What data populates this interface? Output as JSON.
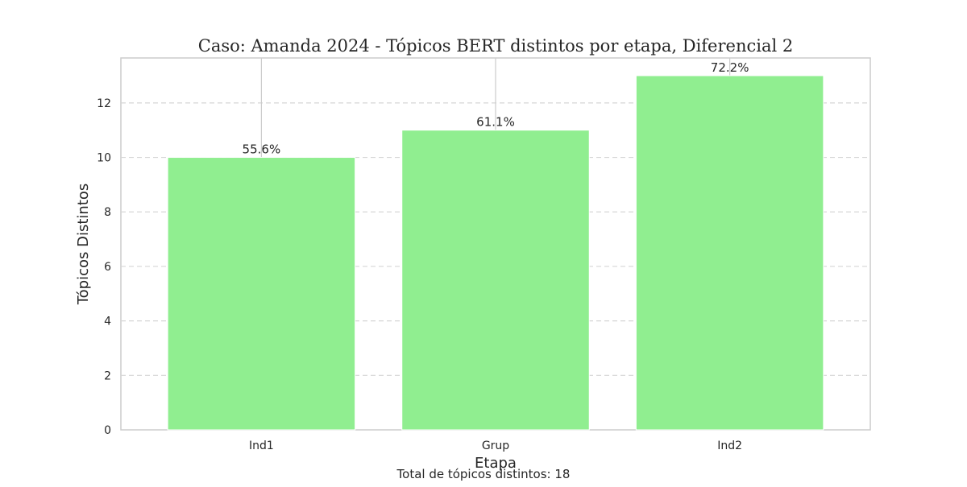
{
  "chart_data": {
    "type": "bar",
    "title": "Caso: Amanda 2024 - Tópicos BERT distintos por etapa, Diferencial 2",
    "xlabel": "Etapa",
    "ylabel": "Tópicos Distintos",
    "categories": [
      "Ind1",
      "Grup",
      "Ind2"
    ],
    "values": [
      10,
      11,
      13
    ],
    "data_labels": [
      "55.6%",
      "61.1%",
      "72.2%"
    ],
    "ylim": [
      0,
      13.65
    ],
    "yticks": [
      0,
      2,
      4,
      6,
      8,
      10,
      12
    ],
    "grid": "y, dashed",
    "legend": "none",
    "bar_color": "#90ee90",
    "footnote": "Total de tópicos distintos: 18"
  }
}
